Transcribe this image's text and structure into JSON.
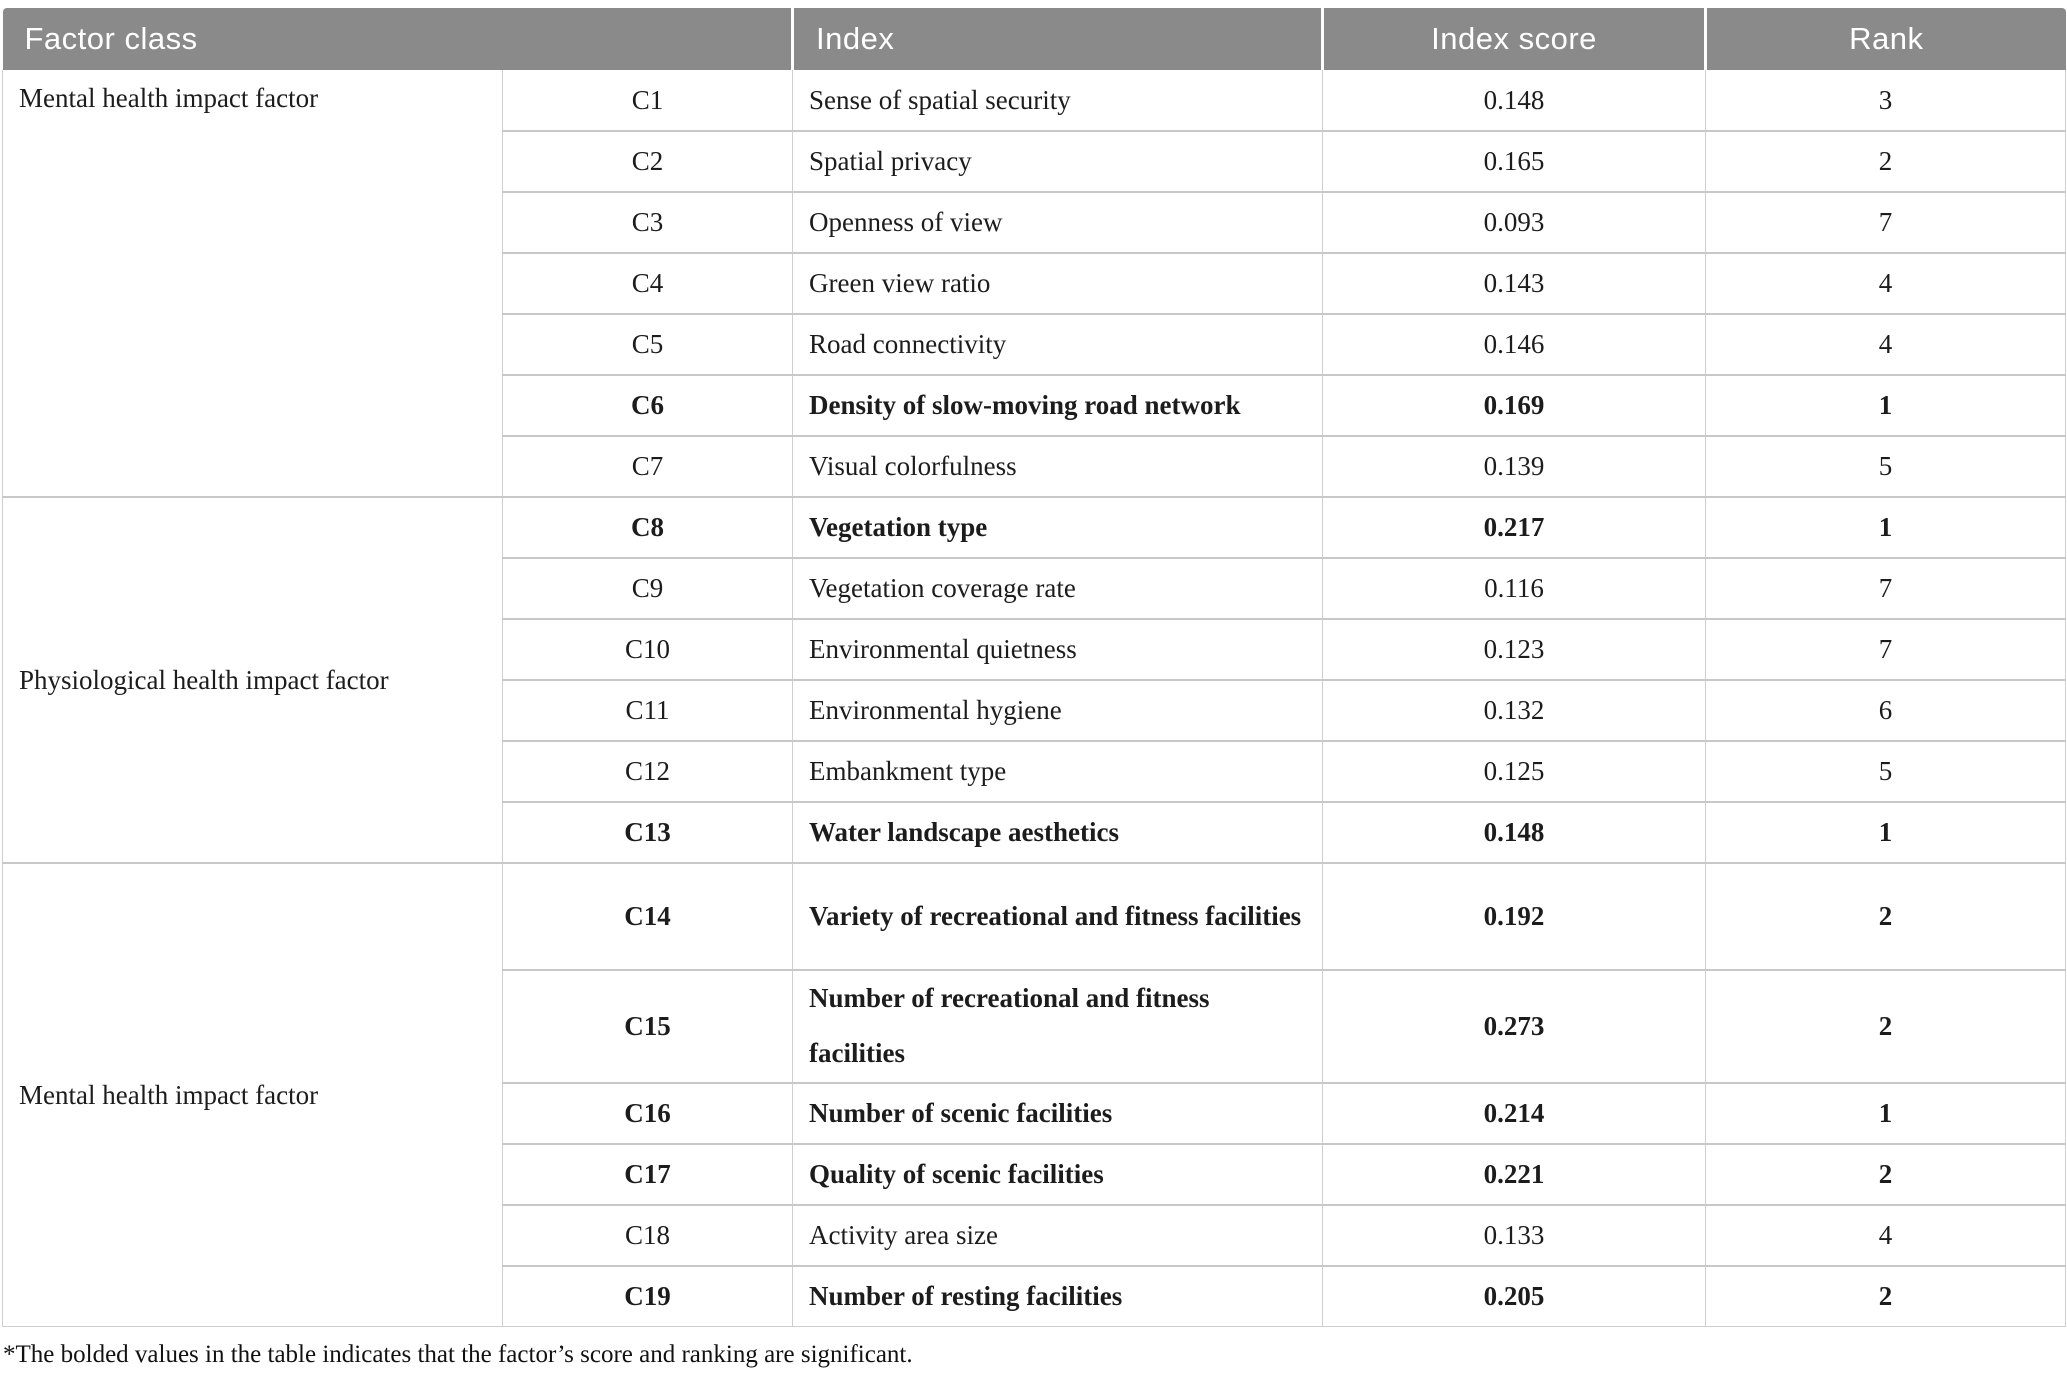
{
  "table": {
    "headers": {
      "factor_class": "Factor class",
      "index": "Index",
      "index_score": "Index score",
      "rank": "Rank"
    },
    "groups": [
      {
        "label": "Mental health impact factor",
        "rows": [
          {
            "code": "C1",
            "name": "Sense of spatial security",
            "score": "0.148",
            "rank": "3",
            "bold": false
          },
          {
            "code": "C2",
            "name": "Spatial privacy",
            "score": "0.165",
            "rank": "2",
            "bold": false
          },
          {
            "code": "C3",
            "name": "Openness of view",
            "score": "0.093",
            "rank": "7",
            "bold": false
          },
          {
            "code": "C4",
            "name": "Green view ratio",
            "score": "0.143",
            "rank": "4",
            "bold": false
          },
          {
            "code": "C5",
            "name": "Road connectivity",
            "score": "0.146",
            "rank": "4",
            "bold": false
          },
          {
            "code": "C6",
            "name": "Density of slow-moving road network",
            "score": "0.169",
            "rank": "1",
            "bold": true
          },
          {
            "code": "C7",
            "name": "Visual colorfulness",
            "score": "0.139",
            "rank": "5",
            "bold": false
          }
        ]
      },
      {
        "label": "Physiological health impact factor",
        "rows": [
          {
            "code": "C8",
            "name": "Vegetation type",
            "score": "0.217",
            "rank": "1",
            "bold": true
          },
          {
            "code": "C9",
            "name": "Vegetation coverage rate",
            "score": "0.116",
            "rank": "7",
            "bold": false
          },
          {
            "code": "C10",
            "name": "Environmental quietness",
            "score": "0.123",
            "rank": "7",
            "bold": false
          },
          {
            "code": "C11",
            "name": "Environmental hygiene",
            "score": "0.132",
            "rank": "6",
            "bold": false
          },
          {
            "code": "C12",
            "name": "Embankment type",
            "score": "0.125",
            "rank": "5",
            "bold": false
          },
          {
            "code": "C13",
            "name": "Water landscape aesthetics",
            "score": "0.148",
            "rank": "1",
            "bold": true
          }
        ]
      },
      {
        "label": "Mental health impact factor",
        "rows": [
          {
            "code": "C14",
            "name": "Variety of recreational and fitness facilities",
            "score": "0.192",
            "rank": "2",
            "bold": true
          },
          {
            "code": "C15",
            "name": "Number of recreational and fitness facilities",
            "score": "0.273",
            "rank": "2",
            "bold": true
          },
          {
            "code": "C16",
            "name": "Number of scenic facilities",
            "score": "0.214",
            "rank": "1",
            "bold": true
          },
          {
            "code": "C17",
            "name": "Quality of scenic facilities",
            "score": "0.221",
            "rank": "2",
            "bold": true
          },
          {
            "code": "C18",
            "name": "Activity area size",
            "score": "0.133",
            "rank": "4",
            "bold": false
          },
          {
            "code": "C19",
            "name": "Number of resting facilities",
            "score": "0.205",
            "rank": "2",
            "bold": true
          }
        ]
      }
    ],
    "footnote": "*The bolded values in the table indicates that the factor’s score and ranking are significant."
  },
  "colors": {
    "header_bg": "#8a8a8a",
    "header_text": "#ffffff",
    "border": "#c8c8c8",
    "body_text": "#1c1c1c"
  }
}
